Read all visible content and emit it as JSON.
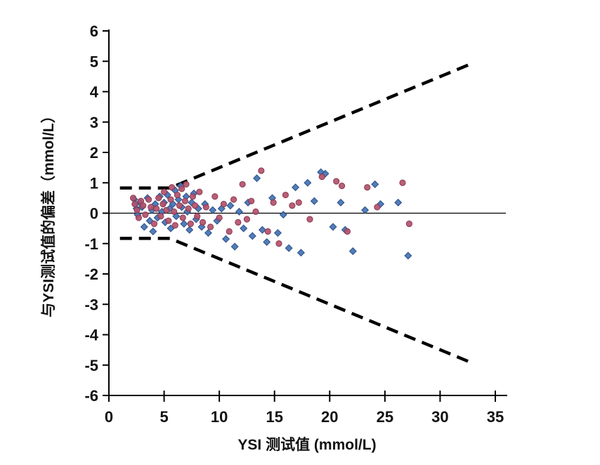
{
  "chart_data": {
    "type": "scatter",
    "title": "",
    "xlabel": "YSI 测试值 (mmol/L)",
    "ylabel": "与YSI测试值的偏差（mmol/L）",
    "xlim": [
      0,
      35
    ],
    "ylim": [
      -6,
      6
    ],
    "x_ticks": [
      0,
      5,
      10,
      15,
      20,
      25,
      30,
      35
    ],
    "y_ticks": [
      -6,
      -5,
      -4,
      -3,
      -2,
      -1,
      0,
      1,
      2,
      3,
      4,
      5,
      6
    ],
    "grid": false,
    "legend_position": "none",
    "zero_line": true,
    "limit_lines": {
      "style": "dashed",
      "color": "#000000",
      "upper": [
        [
          1,
          0.83
        ],
        [
          5.53,
          0.83
        ],
        [
          32.7,
          4.9
        ]
      ],
      "lower": [
        [
          1,
          -0.83
        ],
        [
          5.53,
          -0.83
        ],
        [
          32.7,
          -4.9
        ]
      ]
    },
    "series": [
      {
        "name": "blue-diamond-series",
        "marker": "diamond",
        "color": "#4272b4",
        "edge": "#2b4f86",
        "points": [
          [
            2.3,
            0.45
          ],
          [
            2.4,
            0.3
          ],
          [
            2.5,
            0.15
          ],
          [
            2.6,
            -0.05
          ],
          [
            2.8,
            0.35
          ],
          [
            3.0,
            0.2
          ],
          [
            3.2,
            -0.45
          ],
          [
            3.5,
            0.5
          ],
          [
            3.7,
            -0.25
          ],
          [
            3.9,
            0.1
          ],
          [
            4.0,
            -0.6
          ],
          [
            4.2,
            0.3
          ],
          [
            4.4,
            -0.15
          ],
          [
            4.6,
            0.55
          ],
          [
            4.8,
            0.05
          ],
          [
            5.0,
            0.35
          ],
          [
            5.1,
            -0.3
          ],
          [
            5.3,
            0.6
          ],
          [
            5.5,
            0.15
          ],
          [
            5.6,
            -0.5
          ],
          [
            5.8,
            0.3
          ],
          [
            6.0,
            0.75
          ],
          [
            6.1,
            -0.1
          ],
          [
            6.3,
            0.45
          ],
          [
            6.5,
            0.9
          ],
          [
            6.6,
            0.2
          ],
          [
            6.8,
            -0.35
          ],
          [
            7.0,
            0.55
          ],
          [
            7.1,
            0.05
          ],
          [
            7.3,
            -0.55
          ],
          [
            7.5,
            0.35
          ],
          [
            7.7,
            0.65
          ],
          [
            7.9,
            -0.2
          ],
          [
            8.1,
            0.15
          ],
          [
            8.4,
            -0.45
          ],
          [
            8.7,
            0.3
          ],
          [
            9.0,
            -0.65
          ],
          [
            9.4,
            0.1
          ],
          [
            9.8,
            -0.25
          ],
          [
            10.2,
            0.15
          ],
          [
            10.6,
            -0.85
          ],
          [
            11.0,
            0.25
          ],
          [
            11.4,
            -1.1
          ],
          [
            11.8,
            0.05
          ],
          [
            12.2,
            -0.5
          ],
          [
            12.6,
            0.35
          ],
          [
            13.0,
            -0.75
          ],
          [
            13.4,
            1.15
          ],
          [
            13.9,
            -0.55
          ],
          [
            14.3,
            -0.95
          ],
          [
            14.8,
            0.5
          ],
          [
            15.3,
            -0.65
          ],
          [
            15.8,
            -0.05
          ],
          [
            16.3,
            -1.15
          ],
          [
            16.9,
            0.85
          ],
          [
            17.4,
            -1.3
          ],
          [
            18.0,
            1.0
          ],
          [
            18.6,
            0.4
          ],
          [
            19.2,
            1.35
          ],
          [
            19.6,
            1.3
          ],
          [
            20.3,
            -0.45
          ],
          [
            21.0,
            0.35
          ],
          [
            21.4,
            -0.55
          ],
          [
            22.1,
            -1.25
          ],
          [
            23.2,
            0.1
          ],
          [
            24.1,
            0.95
          ],
          [
            24.6,
            0.3
          ],
          [
            26.2,
            0.35
          ],
          [
            27.1,
            -1.4
          ]
        ]
      },
      {
        "name": "red-circle-series",
        "marker": "circle",
        "color": "#b3516b",
        "edge": "#8a3a52",
        "points": [
          [
            2.2,
            0.5
          ],
          [
            2.35,
            0.3
          ],
          [
            2.55,
            0.1
          ],
          [
            2.7,
            -0.15
          ],
          [
            2.9,
            0.4
          ],
          [
            3.1,
            0.25
          ],
          [
            3.3,
            -0.05
          ],
          [
            3.6,
            0.45
          ],
          [
            3.8,
            0.2
          ],
          [
            4.1,
            -0.35
          ],
          [
            4.3,
            0.15
          ],
          [
            4.5,
            0.5
          ],
          [
            4.7,
            -0.1
          ],
          [
            4.9,
            0.3
          ],
          [
            5.0,
            0.7
          ],
          [
            5.2,
            0.1
          ],
          [
            5.4,
            -0.25
          ],
          [
            5.6,
            0.45
          ],
          [
            5.7,
            0.85
          ],
          [
            5.9,
            0.05
          ],
          [
            6.0,
            -0.4
          ],
          [
            6.2,
            0.6
          ],
          [
            6.4,
            0.25
          ],
          [
            6.6,
            0.8
          ],
          [
            6.7,
            -0.15
          ],
          [
            6.9,
            0.4
          ],
          [
            7.0,
            0.95
          ],
          [
            7.2,
            0.15
          ],
          [
            7.4,
            -0.35
          ],
          [
            7.6,
            0.55
          ],
          [
            7.8,
            0.25
          ],
          [
            8.0,
            -0.1
          ],
          [
            8.2,
            0.7
          ],
          [
            8.5,
            -0.3
          ],
          [
            8.8,
            0.2
          ],
          [
            9.2,
            -0.45
          ],
          [
            9.6,
            0.55
          ],
          [
            10.0,
            -0.15
          ],
          [
            10.4,
            0.3
          ],
          [
            10.9,
            -0.6
          ],
          [
            11.3,
            0.45
          ],
          [
            11.7,
            -0.3
          ],
          [
            12.1,
            0.95
          ],
          [
            12.5,
            -0.2
          ],
          [
            12.9,
            0.4
          ],
          [
            13.3,
            0.05
          ],
          [
            13.8,
            1.4
          ],
          [
            14.4,
            -0.6
          ],
          [
            14.9,
            0.35
          ],
          [
            15.4,
            -1.0
          ],
          [
            16.0,
            0.6
          ],
          [
            16.6,
            0.25
          ],
          [
            17.2,
            0.35
          ],
          [
            18.2,
            -0.2
          ],
          [
            19.3,
            1.2
          ],
          [
            20.6,
            1.05
          ],
          [
            21.1,
            0.9
          ],
          [
            21.6,
            -0.6
          ],
          [
            23.4,
            0.85
          ],
          [
            24.3,
            0.2
          ],
          [
            26.6,
            1.0
          ],
          [
            27.2,
            -0.35
          ]
        ]
      }
    ]
  }
}
